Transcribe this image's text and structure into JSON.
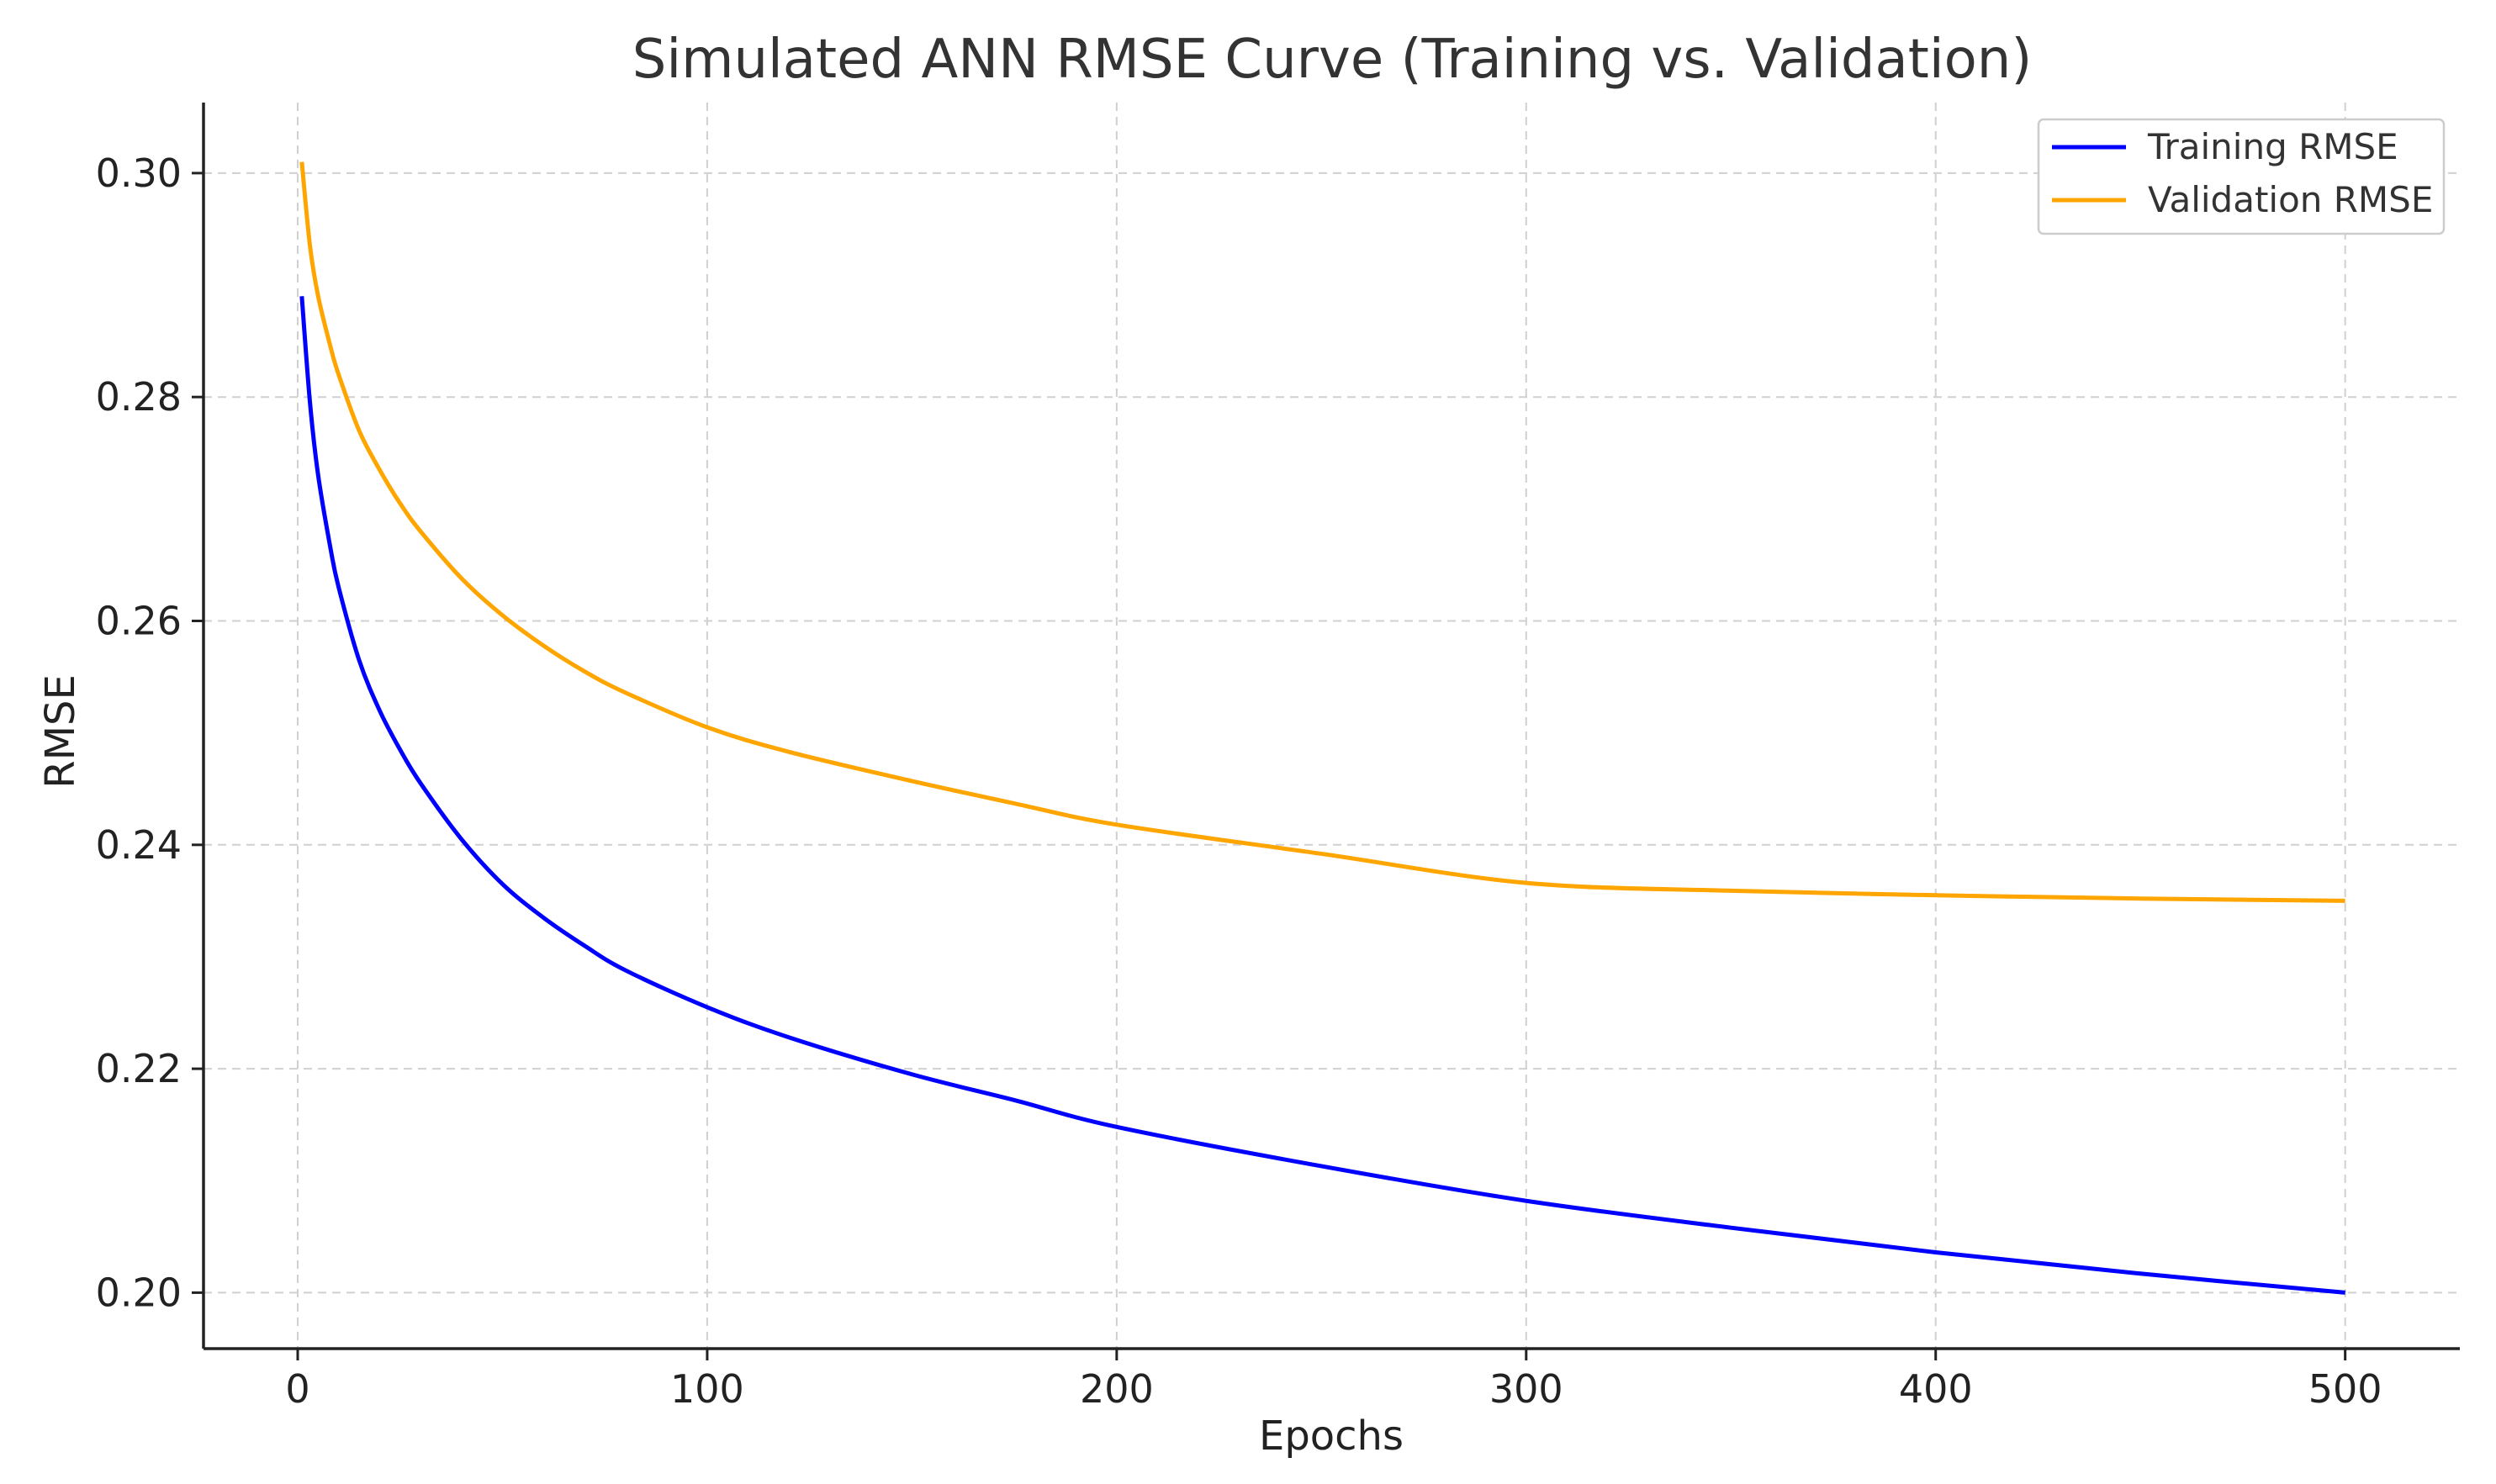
{
  "chart_data": {
    "type": "line",
    "title": "Simulated ANN RMSE Curve (Training vs. Validation)",
    "xlabel": "Epochs",
    "ylabel": "RMSE",
    "xlim": [
      -23,
      528
    ],
    "ylim": [
      0.195,
      0.3063
    ],
    "x_ticks": [
      0,
      100,
      200,
      300,
      400,
      500
    ],
    "x_tick_labels": [
      "0",
      "100",
      "200",
      "300",
      "400",
      "500"
    ],
    "y_ticks": [
      0.2,
      0.22,
      0.24,
      0.26,
      0.28,
      0.3
    ],
    "y_tick_labels": [
      "0.20",
      "0.22",
      "0.24",
      "0.26",
      "0.28",
      "0.30"
    ],
    "grid": true,
    "legend_position": "top-right",
    "series": [
      {
        "name": "Training RMSE",
        "color": "#0000ff",
        "x": [
          1,
          3,
          5,
          8,
          10,
          15,
          20,
          25,
          30,
          40,
          50,
          60,
          70,
          80,
          100,
          120,
          150,
          175,
          200,
          250,
          300,
          350,
          400,
          450,
          500
        ],
        "values": [
          0.289,
          0.2795,
          0.273,
          0.2665,
          0.263,
          0.2565,
          0.252,
          0.2485,
          0.2455,
          0.2405,
          0.2365,
          0.2335,
          0.231,
          0.2288,
          0.2255,
          0.2228,
          0.2195,
          0.2172,
          0.2148,
          0.2113,
          0.2082,
          0.2058,
          0.2036,
          0.2017,
          0.2
        ]
      },
      {
        "name": "Validation RMSE",
        "color": "#ffa500",
        "x": [
          1,
          3,
          5,
          8,
          10,
          15,
          20,
          25,
          30,
          40,
          50,
          60,
          70,
          80,
          100,
          120,
          150,
          175,
          200,
          250,
          300,
          350,
          400,
          450,
          500
        ],
        "values": [
          0.301,
          0.2935,
          0.289,
          0.2845,
          0.282,
          0.277,
          0.2735,
          0.2705,
          0.268,
          0.2638,
          0.2605,
          0.2578,
          0.2555,
          0.2536,
          0.2505,
          0.2483,
          0.2457,
          0.2437,
          0.2418,
          0.2392,
          0.2366,
          0.2359,
          0.2355,
          0.2352,
          0.235
        ]
      }
    ]
  }
}
